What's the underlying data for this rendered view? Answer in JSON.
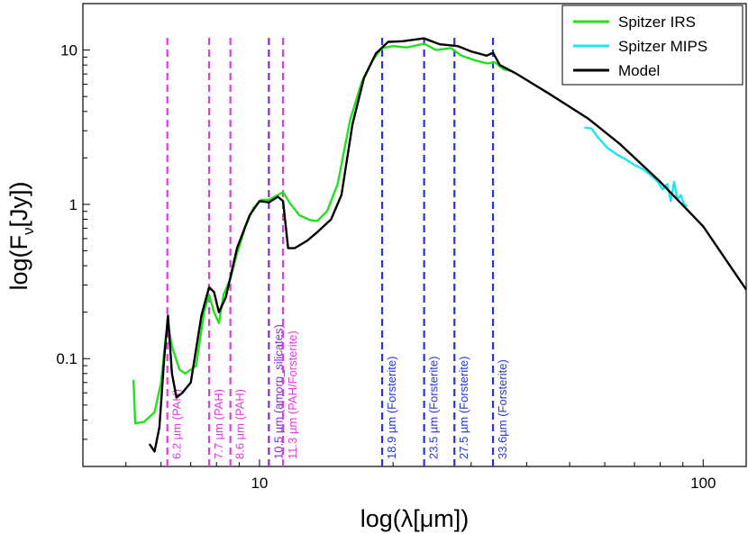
{
  "chart_data": {
    "type": "line",
    "title": "",
    "xlabel": "log(λ[μm])",
    "ylabel_main": "log(F",
    "ylabel_sub": "ν",
    "ylabel_end": "[Jy])",
    "x_scale": "log",
    "y_scale": "log",
    "xlim": [
      4,
      125
    ],
    "ylim": [
      0.02,
      20
    ],
    "x_ticks": [
      {
        "value": 10,
        "label": "10"
      },
      {
        "value": 100,
        "label": "100"
      }
    ],
    "y_ticks": [
      {
        "value": 0.1,
        "label": "0.1"
      },
      {
        "value": 1,
        "label": "1"
      },
      {
        "value": 10,
        "label": "10"
      }
    ],
    "legend_position": "top-right",
    "series": [
      {
        "name": "Spitzer IRS",
        "color": "#22e01e",
        "points": [
          [
            5.2,
            0.073
          ],
          [
            5.25,
            0.038
          ],
          [
            5.5,
            0.039
          ],
          [
            5.8,
            0.045
          ],
          [
            6.0,
            0.07
          ],
          [
            6.15,
            0.14
          ],
          [
            6.22,
            0.17
          ],
          [
            6.35,
            0.12
          ],
          [
            6.6,
            0.085
          ],
          [
            6.8,
            0.08
          ],
          [
            7.2,
            0.09
          ],
          [
            7.5,
            0.2
          ],
          [
            7.7,
            0.26
          ],
          [
            7.9,
            0.2
          ],
          [
            8.1,
            0.17
          ],
          [
            8.3,
            0.26
          ],
          [
            8.6,
            0.33
          ],
          [
            8.9,
            0.48
          ],
          [
            9.3,
            0.72
          ],
          [
            9.7,
            0.95
          ],
          [
            10.1,
            1.07
          ],
          [
            10.5,
            1.07
          ],
          [
            11.0,
            1.15
          ],
          [
            11.3,
            1.2
          ],
          [
            11.7,
            1.02
          ],
          [
            12.3,
            0.85
          ],
          [
            13.0,
            0.79
          ],
          [
            13.5,
            0.78
          ],
          [
            14.2,
            0.9
          ],
          [
            15.0,
            1.35
          ],
          [
            16.0,
            3.5
          ],
          [
            17.0,
            6.2
          ],
          [
            18.0,
            8.6
          ],
          [
            18.9,
            10.3
          ],
          [
            20.0,
            10.6
          ],
          [
            21.5,
            10.4
          ],
          [
            23.5,
            11.0
          ],
          [
            25.0,
            10.0
          ],
          [
            27.0,
            10.3
          ],
          [
            28.5,
            9.2
          ],
          [
            30.5,
            8.6
          ],
          [
            32.5,
            8.2
          ],
          [
            34.0,
            8.3
          ],
          [
            35.5,
            7.5
          ],
          [
            37.0,
            7.3
          ]
        ]
      },
      {
        "name": "Spitzer MIPS",
        "color": "#1ce6f0",
        "points": [
          [
            54,
            3.15
          ],
          [
            56,
            3.1
          ],
          [
            58,
            2.7
          ],
          [
            61,
            2.3
          ],
          [
            64,
            2.1
          ],
          [
            67,
            1.95
          ],
          [
            70,
            1.8
          ],
          [
            73,
            1.7
          ],
          [
            76,
            1.55
          ],
          [
            79,
            1.4
          ],
          [
            81,
            1.25
          ],
          [
            83,
            1.35
          ],
          [
            84.5,
            1.05
          ],
          [
            86,
            1.4
          ],
          [
            87.5,
            1.07
          ],
          [
            89,
            1.15
          ],
          [
            90.5,
            1.0
          ],
          [
            92,
            0.97
          ]
        ]
      },
      {
        "name": "Model",
        "color": "#000000",
        "points": [
          [
            5.65,
            0.028
          ],
          [
            5.8,
            0.025
          ],
          [
            5.95,
            0.036
          ],
          [
            6.1,
            0.1
          ],
          [
            6.22,
            0.19
          ],
          [
            6.35,
            0.08
          ],
          [
            6.5,
            0.056
          ],
          [
            6.7,
            0.06
          ],
          [
            7.0,
            0.07
          ],
          [
            7.4,
            0.19
          ],
          [
            7.7,
            0.29
          ],
          [
            7.9,
            0.27
          ],
          [
            8.1,
            0.2
          ],
          [
            8.4,
            0.25
          ],
          [
            8.9,
            0.52
          ],
          [
            9.5,
            0.85
          ],
          [
            10.0,
            1.05
          ],
          [
            10.5,
            1.03
          ],
          [
            11.0,
            1.12
          ],
          [
            11.3,
            1.05
          ],
          [
            11.6,
            0.52
          ],
          [
            12.0,
            0.52
          ],
          [
            12.8,
            0.58
          ],
          [
            13.5,
            0.66
          ],
          [
            14.5,
            0.8
          ],
          [
            15.3,
            1.15
          ],
          [
            16.2,
            3.3
          ],
          [
            17.2,
            6.6
          ],
          [
            18.3,
            9.5
          ],
          [
            19.5,
            11.3
          ],
          [
            21.0,
            11.4
          ],
          [
            23.5,
            11.9
          ],
          [
            25.5,
            10.9
          ],
          [
            28.0,
            10.6
          ],
          [
            30.0,
            9.8
          ],
          [
            32.5,
            9.2
          ],
          [
            33.6,
            9.6
          ],
          [
            34.8,
            8.0
          ],
          [
            38.0,
            7.0
          ],
          [
            45.0,
            5.2
          ],
          [
            55.0,
            3.6
          ],
          [
            65.0,
            2.45
          ],
          [
            80.0,
            1.4
          ],
          [
            100.0,
            0.72
          ],
          [
            125.0,
            0.28
          ]
        ]
      }
    ],
    "feature_lines": [
      {
        "x": 6.2,
        "label": "6.2 µm (PAH)",
        "color": "#e23ce0"
      },
      {
        "x": 7.7,
        "label": "7.7 µm (PAH)",
        "color": "#e23ce0"
      },
      {
        "x": 8.6,
        "label": "8.6 µm (PAH)",
        "color": "#e23ce0"
      },
      {
        "x": 10.5,
        "label": "10.5 µm (amorp_silicates)",
        "color": "#8a2ad6"
      },
      {
        "x": 11.3,
        "label": "11.3 µm (PAH/Forsterite)",
        "color": "#e23ce0"
      },
      {
        "x": 18.9,
        "label": "18.9 µm (Forsterite)",
        "color": "#2436d6"
      },
      {
        "x": 23.5,
        "label": "23.5 µm (Forsterite)",
        "color": "#2436d6"
      },
      {
        "x": 27.5,
        "label": "27.5 µm (Forsterite)",
        "color": "#2436d6"
      },
      {
        "x": 33.6,
        "label": "33.6µm (Forsterite)",
        "color": "#2436d6"
      }
    ]
  }
}
